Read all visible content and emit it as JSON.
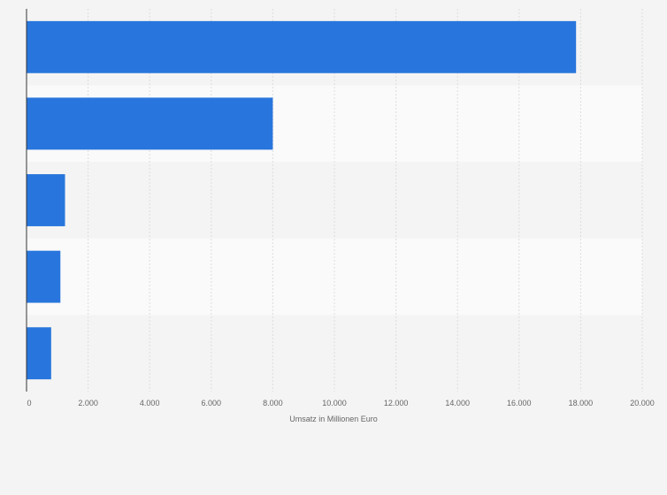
{
  "chart_data": {
    "type": "bar",
    "orientation": "horizontal",
    "categories": [
      "",
      "",
      "",
      "",
      ""
    ],
    "values": [
      17850,
      8000,
      1250,
      1100,
      800
    ],
    "title": "",
    "xlabel": "Umsatz in Millionen Euro",
    "ylabel": "",
    "xlim": [
      0,
      20000
    ],
    "ticks": [
      0,
      2000,
      4000,
      6000,
      8000,
      10000,
      12000,
      14000,
      16000,
      18000,
      20000
    ],
    "tick_labels": [
      "0",
      "2.000",
      "4.000",
      "6.000",
      "8.000",
      "10.000",
      "12.000",
      "14.000",
      "16.000",
      "18.000",
      "20.000"
    ],
    "grid": true,
    "legend": "none",
    "bar_color": "#2876dd",
    "row_colors": [
      "#f4f4f4",
      "#fafafa"
    ]
  }
}
